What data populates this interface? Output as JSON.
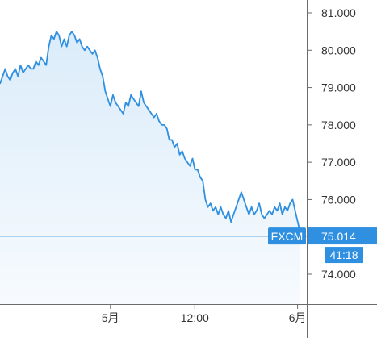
{
  "chart_data": {
    "type": "area",
    "source_badge": "FXCM",
    "last_price_label": "75.014",
    "countdown": "41:18",
    "last_value": 75.014,
    "ylim": [
      73.2,
      81.45
    ],
    "y_ticks": [
      "81.000",
      "80.000",
      "79.000",
      "78.000",
      "77.000",
      "76.000",
      "74.000"
    ],
    "x_ticks": [
      {
        "label": "5月",
        "t": 0.36
      },
      {
        "label": "12:00",
        "t": 0.635
      },
      {
        "label": "6月",
        "t": 0.97
      }
    ],
    "series": [
      {
        "values": [
          79.1,
          79.3,
          79.5,
          79.3,
          79.2,
          79.4,
          79.5,
          79.3,
          79.6,
          79.4,
          79.5,
          79.6,
          79.5,
          79.5,
          79.7,
          79.6,
          79.8,
          79.7,
          79.6,
          80.1,
          80.4,
          80.3,
          80.5,
          80.4,
          80.1,
          80.3,
          80.1,
          80.4,
          80.5,
          80.4,
          80.2,
          80.3,
          80.1,
          80.0,
          80.1,
          80.0,
          79.9,
          80.0,
          79.8,
          79.5,
          79.3,
          78.9,
          78.7,
          78.5,
          78.8,
          78.6,
          78.5,
          78.4,
          78.3,
          78.6,
          78.5,
          78.8,
          78.7,
          78.6,
          78.5,
          78.9,
          78.6,
          78.5,
          78.4,
          78.3,
          78.2,
          78.3,
          78.1,
          78.0,
          78.0,
          77.9,
          77.6,
          77.6,
          77.4,
          77.5,
          77.2,
          77.3,
          77.1,
          77.0,
          76.9,
          77.1,
          76.8,
          76.8,
          76.6,
          76.5,
          76.0,
          75.8,
          75.9,
          75.7,
          75.8,
          75.6,
          75.8,
          75.6,
          75.5,
          75.7,
          75.4,
          75.6,
          75.8,
          76.0,
          76.2,
          76.0,
          75.8,
          75.6,
          75.8,
          75.6,
          75.7,
          75.9,
          75.6,
          75.5,
          75.6,
          75.7,
          75.6,
          75.8,
          75.7,
          75.9,
          75.6,
          75.8,
          75.7,
          75.9,
          76.0,
          75.7,
          75.4,
          75.1
        ]
      }
    ]
  }
}
